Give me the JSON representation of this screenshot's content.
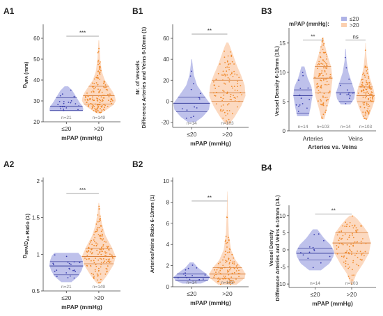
{
  "colors": {
    "low_fill": "#aeb2e6",
    "low_line": "#3a3f9e",
    "low_point": "#3b3fb0",
    "high_fill": "#fbd0b0",
    "high_line": "#d9823e",
    "high_point": "#f08a2c"
  },
  "legend": {
    "title": "mPAP (mmHg):",
    "items": [
      {
        "label": "≤20",
        "color": "#aeb2e6"
      },
      {
        "label": ">20",
        "color": "#fbd0b0"
      }
    ]
  },
  "chart_data": [
    {
      "panel": "A1",
      "type": "violin",
      "ylabel": "D_MPA (mm)",
      "ylabel_main": "D",
      "ylabel_sub": "MPA",
      "ylabel_rest": " (mm)",
      "xlabel": "mPAP (mmHg)",
      "ylim": [
        20,
        65
      ],
      "yticks": [
        "20",
        "30",
        "40",
        "50",
        "60"
      ],
      "ytick_values": [
        20,
        30,
        40,
        50,
        60
      ],
      "groups": [
        {
          "label": "≤20",
          "n": "n=21",
          "color": "low",
          "min": 25,
          "max": 37,
          "q1": 25.5,
          "median": 27.5,
          "q3": 31.5,
          "shape": [
            [
              25,
              0.95
            ],
            [
              26,
              1.0
            ],
            [
              27.5,
              0.95
            ],
            [
              29,
              0.8
            ],
            [
              31,
              0.65
            ],
            [
              33,
              0.5
            ],
            [
              35,
              0.35
            ],
            [
              37,
              0.1
            ]
          ]
        },
        {
          "label": ">20",
          "n": "n=149",
          "color": "high",
          "min": 24,
          "max": 59,
          "q1": 28.5,
          "median": 32.5,
          "q3": 37,
          "shape": [
            [
              24,
              0.1
            ],
            [
              26,
              0.5
            ],
            [
              28,
              0.85
            ],
            [
              30,
              1.0
            ],
            [
              32,
              0.95
            ],
            [
              34,
              0.85
            ],
            [
              37,
              0.6
            ],
            [
              40,
              0.35
            ],
            [
              44,
              0.18
            ],
            [
              50,
              0.08
            ],
            [
              59,
              0.02
            ]
          ]
        }
      ],
      "significance": {
        "text": "***",
        "y": 61
      }
    },
    {
      "panel": "B1",
      "type": "violin",
      "ylabel": "Nr. of Vessels Difference Arteries and Veins 6-10mm (1)",
      "ylabel_lines": [
        "Nr. of Vessels",
        "Difference Arteries and Veins 6-10mm (1)"
      ],
      "xlabel": "mPAP (mmHg)",
      "ylim": [
        -25,
        70
      ],
      "yticks": [
        "-20",
        "0",
        "20",
        "40",
        "60"
      ],
      "ytick_values": [
        -20,
        0,
        20,
        40,
        60
      ],
      "groups": [
        {
          "label": "≤20",
          "n": "n=14",
          "color": "low",
          "min": -20,
          "max": 40,
          "q1": -10,
          "median": -2,
          "q3": 4,
          "shape": [
            [
              -20,
              0.2
            ],
            [
              -15,
              0.6
            ],
            [
              -8,
              0.95
            ],
            [
              -2,
              1.0
            ],
            [
              5,
              0.7
            ],
            [
              15,
              0.3
            ],
            [
              25,
              0.12
            ],
            [
              35,
              0.05
            ],
            [
              40,
              0.02
            ]
          ]
        },
        {
          "label": ">20",
          "n": "n=103",
          "color": "high",
          "min": -22,
          "max": 56,
          "q1": 0,
          "median": 8,
          "q3": 20,
          "shape": [
            [
              -22,
              0.1
            ],
            [
              -15,
              0.4
            ],
            [
              -5,
              0.75
            ],
            [
              5,
              1.0
            ],
            [
              15,
              0.95
            ],
            [
              25,
              0.75
            ],
            [
              35,
              0.5
            ],
            [
              45,
              0.3
            ],
            [
              52,
              0.15
            ],
            [
              56,
              0.05
            ]
          ]
        }
      ],
      "significance": {
        "text": "**",
        "y": 64
      }
    },
    {
      "panel": "B3",
      "type": "violin",
      "ylabel": "Vessel Density 6-10mm (1/L)",
      "xlabel": "Arteries vs. Veins",
      "ylim": [
        0,
        17
      ],
      "yticks": [
        "0",
        "5",
        "10",
        "15"
      ],
      "ytick_values": [
        0,
        5,
        10,
        15
      ],
      "category_labels": [
        "Arteries",
        "Veins"
      ],
      "groups": [
        {
          "label": "Arteries ≤20",
          "n": "n=14",
          "color": "low",
          "min": 2.5,
          "max": 11,
          "q1": 3,
          "median": 6,
          "q3": 7,
          "shape": [
            [
              2.5,
              0.6
            ],
            [
              4,
              0.8
            ],
            [
              6,
              1.0
            ],
            [
              7.5,
              0.9
            ],
            [
              9,
              0.5
            ],
            [
              11,
              0.15
            ]
          ]
        },
        {
          "label": "Arteries >20",
          "n": "n=103",
          "color": "high",
          "min": 2,
          "max": 16,
          "q1": 6.5,
          "median": 9,
          "q3": 11,
          "shape": [
            [
              2,
              0.15
            ],
            [
              4,
              0.45
            ],
            [
              6,
              0.8
            ],
            [
              9,
              1.0
            ],
            [
              11,
              0.85
            ],
            [
              13,
              0.45
            ],
            [
              15,
              0.15
            ],
            [
              16,
              0.05
            ]
          ]
        },
        {
          "label": "Veins ≤20",
          "n": "n=14",
          "color": "low",
          "min": 4.5,
          "max": 14,
          "q1": 5,
          "median": 6.5,
          "q3": 8,
          "shape": [
            [
              4.5,
              0.5
            ],
            [
              5.5,
              0.9
            ],
            [
              6.5,
              1.0
            ],
            [
              8,
              0.7
            ],
            [
              10,
              0.3
            ],
            [
              12,
              0.1
            ],
            [
              14,
              0.03
            ]
          ]
        },
        {
          "label": "Veins >20",
          "n": "n=103",
          "color": "high",
          "min": 2,
          "max": 15,
          "q1": 5,
          "median": 6,
          "q3": 7.5,
          "shape": [
            [
              2,
              0.2
            ],
            [
              4,
              0.7
            ],
            [
              5.5,
              1.0
            ],
            [
              7,
              0.85
            ],
            [
              9,
              0.45
            ],
            [
              11,
              0.2
            ],
            [
              13,
              0.08
            ],
            [
              15,
              0.02
            ]
          ]
        }
      ],
      "significance_items": [
        {
          "text": "**",
          "between": [
            0,
            1
          ],
          "y": 15.5
        },
        {
          "text": "ns",
          "between": [
            2,
            3
          ],
          "y": 15.5
        }
      ]
    },
    {
      "panel": "A2",
      "type": "violin",
      "ylabel": "D_MPA/D_Ao Ratio (1)",
      "xlabel": "mPAP (mmHg)",
      "ylim": [
        0.5,
        2.0
      ],
      "yticks": [
        "0.5",
        "1",
        "1.5",
        "2"
      ],
      "ytick_values": [
        0.5,
        1.0,
        1.5,
        2.0
      ],
      "groups": [
        {
          "label": "≤20",
          "n": "n=21",
          "color": "low",
          "min": 0.62,
          "max": 1.02,
          "q1": 0.72,
          "median": 0.84,
          "q3": 0.9,
          "shape": [
            [
              0.62,
              0.3
            ],
            [
              0.7,
              0.7
            ],
            [
              0.78,
              0.9
            ],
            [
              0.85,
              1.0
            ],
            [
              0.92,
              0.95
            ],
            [
              0.98,
              0.85
            ],
            [
              1.02,
              0.7
            ]
          ]
        },
        {
          "label": ">20",
          "n": "n=149",
          "color": "high",
          "min": 0.6,
          "max": 1.7,
          "q1": 0.87,
          "median": 0.97,
          "q3": 1.08,
          "shape": [
            [
              0.6,
              0.1
            ],
            [
              0.7,
              0.45
            ],
            [
              0.85,
              0.85
            ],
            [
              0.97,
              1.0
            ],
            [
              1.1,
              0.75
            ],
            [
              1.25,
              0.4
            ],
            [
              1.4,
              0.2
            ],
            [
              1.55,
              0.08
            ],
            [
              1.7,
              0.02
            ]
          ]
        }
      ],
      "significance": {
        "text": "***",
        "y": 1.83
      }
    },
    {
      "panel": "B2",
      "type": "violin",
      "ylabel": "Arteries/Veins Ratio 6-10mm (1)",
      "xlabel": "mPAP (mmHg)",
      "ylim": [
        0,
        10
      ],
      "yticks": [
        "0",
        "2",
        "4",
        "6",
        "8",
        "10"
      ],
      "ytick_values": [
        0,
        2,
        4,
        6,
        8,
        10
      ],
      "groups": [
        {
          "label": "≤20",
          "n": "n=14",
          "color": "low",
          "min": 0.3,
          "max": 2.3,
          "q1": 0.6,
          "median": 0.9,
          "q3": 1.2,
          "shape": [
            [
              0.3,
              0.5
            ],
            [
              0.6,
              0.9
            ],
            [
              0.9,
              1.0
            ],
            [
              1.3,
              0.75
            ],
            [
              1.8,
              0.35
            ],
            [
              2.3,
              0.1
            ]
          ]
        },
        {
          "label": ">20",
          "n": "n=103",
          "color": "high",
          "min": 0.2,
          "max": 9,
          "q1": 0.8,
          "median": 1.2,
          "q3": 1.8,
          "shape": [
            [
              0.2,
              0.5
            ],
            [
              0.8,
              0.95
            ],
            [
              1.2,
              1.0
            ],
            [
              1.8,
              0.8
            ],
            [
              2.5,
              0.45
            ],
            [
              3.5,
              0.2
            ],
            [
              5,
              0.08
            ],
            [
              7,
              0.03
            ],
            [
              9,
              0.01
            ]
          ]
        }
      ],
      "significance": {
        "text": "**",
        "y": 8.1
      }
    },
    {
      "panel": "B4",
      "type": "violin",
      "ylabel": "Vessel Density Difference Arteries and Veins 6-10mm (1/L)",
      "ylabel_lines": [
        "Vessel Density",
        "Difference Arteries and Veins 6-10mm (1/L)"
      ],
      "xlabel": "mPAP (mmHg)",
      "ylim": [
        -11,
        12
      ],
      "yticks": [
        "-10",
        "-5",
        "0",
        "5",
        "10"
      ],
      "ytick_values": [
        -10,
        -5,
        0,
        5,
        10
      ],
      "groups": [
        {
          "label": "≤20",
          "n": "n=14",
          "color": "low",
          "min": -6,
          "max": 6,
          "q1": -3,
          "median": -1,
          "q3": 0.5,
          "shape": [
            [
              -6,
              0.3
            ],
            [
              -4,
              0.75
            ],
            [
              -2,
              0.95
            ],
            [
              -0.5,
              1.0
            ],
            [
              1.5,
              0.8
            ],
            [
              3.5,
              0.45
            ],
            [
              6,
              0.12
            ]
          ]
        },
        {
          "label": ">20",
          "n": "n=103",
          "color": "high",
          "min": -10,
          "max": 10,
          "q1": -1,
          "median": 2,
          "q3": 5,
          "shape": [
            [
              -10,
              0.05
            ],
            [
              -7,
              0.25
            ],
            [
              -4,
              0.6
            ],
            [
              -1,
              0.9
            ],
            [
              2,
              1.0
            ],
            [
              5,
              0.85
            ],
            [
              7,
              0.6
            ],
            [
              9,
              0.3
            ],
            [
              10,
              0.1
            ]
          ]
        }
      ],
      "significance": {
        "text": "**",
        "y": 10.5
      }
    }
  ]
}
